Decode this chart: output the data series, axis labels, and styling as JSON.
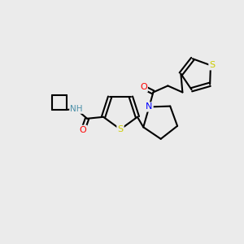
{
  "background_color": "#ebebeb",
  "bond_color": "#000000",
  "bond_width": 1.5,
  "atom_colors": {
    "N": "#0000ff",
    "O": "#ff0000",
    "S_thiophene": "#cccc00",
    "S_thienyl": "#cccc00",
    "NH": "#4a8fa8",
    "C": "#000000"
  },
  "font_size": 7.5,
  "fig_width": 3.0,
  "fig_height": 3.0,
  "dpi": 100
}
